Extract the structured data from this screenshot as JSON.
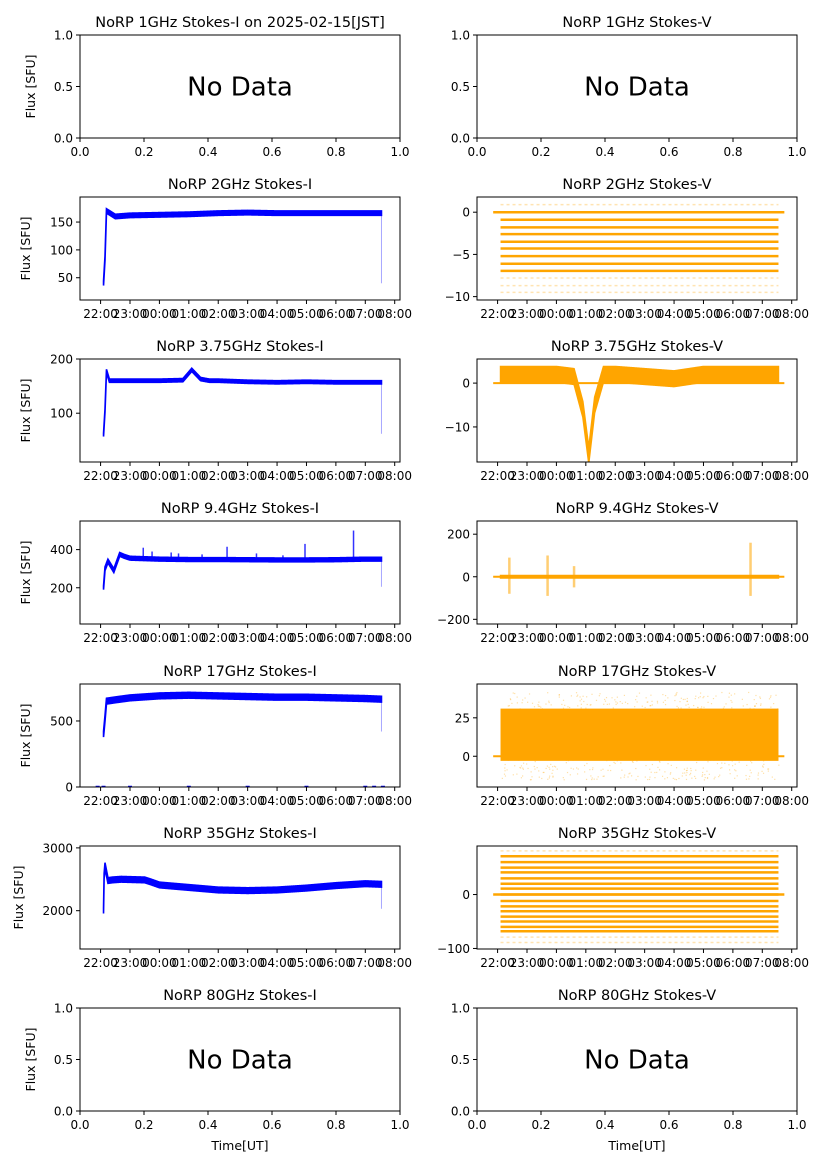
{
  "figure": {
    "date_note": "2025-02-15[JST]",
    "xlabel_bottom": "Time[UT]",
    "ylabel_left": "Flux [SFU]",
    "no_data_text": "No Data"
  },
  "colors": {
    "stokes_i": "#0000ff",
    "stokes_v": "#ffa500",
    "axis": "#000000"
  },
  "chart_data": [
    {
      "id": "1ghz-i",
      "type": "scatter",
      "title": "NoRP 1GHz Stokes-I on 2025-02-15[JST]",
      "ylabel": "Flux [SFU]",
      "xlabel": "",
      "no_data": true,
      "xlim": [
        0,
        1
      ],
      "ylim": [
        0,
        1
      ],
      "xticks": [
        "0.0",
        "0.2",
        "0.4",
        "0.6",
        "0.8",
        "1.0"
      ],
      "xtick_values": [
        0,
        0.2,
        0.4,
        0.6,
        0.8,
        1.0
      ],
      "yticks": [
        "0.0",
        "0.5",
        "1.0"
      ],
      "ytick_values": [
        0,
        0.5,
        1.0
      ]
    },
    {
      "id": "1ghz-v",
      "type": "scatter",
      "title": "NoRP 1GHz Stokes-V",
      "ylabel": "",
      "xlabel": "",
      "no_data": true,
      "xlim": [
        0,
        1
      ],
      "ylim": [
        0,
        1
      ],
      "xticks": [
        "0.0",
        "0.2",
        "0.4",
        "0.6",
        "0.8",
        "1.0"
      ],
      "xtick_values": [
        0,
        0.2,
        0.4,
        0.6,
        0.8,
        1.0
      ],
      "yticks": [
        "0.0",
        "0.5",
        "1.0"
      ],
      "ytick_values": [
        0,
        0.5,
        1.0
      ]
    },
    {
      "id": "2ghz-i",
      "type": "scatter",
      "title": "NoRP 2GHz Stokes-I",
      "ylabel": "Flux [SFU]",
      "xlabel": "",
      "no_data": false,
      "series_kind": "I",
      "xlim_hours": [
        -2.7,
        8.18
      ],
      "ylim": [
        10,
        195
      ],
      "xticks": [
        "22:00",
        "23:00",
        "00:00",
        "01:00",
        "02:00",
        "03:00",
        "04:00",
        "05:00",
        "06:00",
        "07:00",
        "08:00"
      ],
      "xtick_hours": [
        -2,
        -1,
        0,
        1,
        2,
        3,
        4,
        5,
        6,
        7,
        8
      ],
      "yticks": [
        "50",
        "100",
        "150"
      ],
      "ytick_values": [
        50,
        100,
        150
      ],
      "start_hour": -1.9,
      "end_hour": 7.55,
      "band_halfwidth": 4,
      "series": [
        {
          "name": "Stokes-I",
          "x_hours": [
            -1.9,
            -1.85,
            -1.8,
            -1.5,
            -1,
            0,
            1,
            2,
            3,
            4,
            5,
            6,
            7,
            7.55
          ],
          "values": [
            40,
            85,
            170,
            160,
            162,
            163,
            164,
            166,
            167,
            166,
            166,
            166,
            166,
            166
          ]
        }
      ],
      "outliers": [
        {
          "x_hours": 7.55,
          "range": [
            40,
            166
          ]
        }
      ]
    },
    {
      "id": "2ghz-v",
      "type": "scatter",
      "title": "NoRP 2GHz Stokes-V",
      "ylabel": "",
      "xlabel": "",
      "no_data": false,
      "series_kind": "V-levels",
      "xlim_hours": [
        -2.7,
        8.18
      ],
      "ylim": [
        -10.4,
        1.8
      ],
      "xticks": [
        "22:00",
        "23:00",
        "00:00",
        "01:00",
        "02:00",
        "03:00",
        "04:00",
        "05:00",
        "06:00",
        "07:00",
        "08:00"
      ],
      "xtick_hours": [
        -2,
        -1,
        0,
        1,
        2,
        3,
        4,
        5,
        6,
        7,
        8
      ],
      "yticks": [
        "−10",
        "−5",
        "0"
      ],
      "ytick_values": [
        -10,
        -5,
        0
      ],
      "start_hour": -1.9,
      "end_hour": 7.55,
      "zero_line": [
        -2.15,
        7.75
      ],
      "levels_solid": [
        -0.9,
        -1.8,
        -2.6,
        -3.5,
        -4.3,
        -5.2,
        -6.1,
        -6.95
      ],
      "levels_faint": [
        0.9,
        0,
        -7.8,
        -8.7,
        -9.5
      ]
    },
    {
      "id": "3.75ghz-i",
      "type": "scatter",
      "title": "NoRP 3.75GHz Stokes-I",
      "ylabel": "Flux [SFU]",
      "xlabel": "",
      "no_data": false,
      "series_kind": "I",
      "xlim_hours": [
        -2.7,
        8.18
      ],
      "ylim": [
        10,
        200
      ],
      "xticks": [
        "22:00",
        "23:00",
        "00:00",
        "01:00",
        "02:00",
        "03:00",
        "04:00",
        "05:00",
        "06:00",
        "07:00",
        "08:00"
      ],
      "xtick_hours": [
        -2,
        -1,
        0,
        1,
        2,
        3,
        4,
        5,
        6,
        7,
        8
      ],
      "yticks": [
        "100",
        "200"
      ],
      "ytick_values": [
        100,
        200
      ],
      "start_hour": -1.9,
      "end_hour": 7.55,
      "band_halfwidth": 3,
      "series": [
        {
          "name": "Stokes-I",
          "x_hours": [
            -1.9,
            -1.85,
            -1.8,
            -1.7,
            -1.5,
            -1,
            0,
            0.8,
            1.1,
            1.4,
            1.7,
            2,
            3,
            4,
            5,
            6,
            7,
            7.55
          ],
          "values": [
            60,
            105,
            178,
            160,
            160,
            160,
            160,
            161,
            180,
            163,
            160,
            160,
            158,
            157,
            158,
            157,
            157,
            157
          ]
        }
      ],
      "outliers": [
        {
          "x_hours": 7.55,
          "range": [
            62,
            157
          ]
        }
      ]
    },
    {
      "id": "3.75ghz-v",
      "type": "scatter",
      "title": "NoRP 3.75GHz Stokes-V",
      "ylabel": "",
      "xlabel": "",
      "no_data": false,
      "series_kind": "V",
      "xlim_hours": [
        -2.7,
        8.18
      ],
      "ylim": [
        -18,
        5.5
      ],
      "xticks": [
        "22:00",
        "23:00",
        "00:00",
        "01:00",
        "02:00",
        "03:00",
        "04:00",
        "05:00",
        "06:00",
        "07:00",
        "08:00"
      ],
      "xtick_hours": [
        -2,
        -1,
        0,
        1,
        2,
        3,
        4,
        5,
        6,
        7,
        8
      ],
      "yticks": [
        "−10",
        "0"
      ],
      "ytick_values": [
        -10,
        0
      ],
      "start_hour": -1.9,
      "end_hour": 7.55,
      "zero_line": [
        -2.15,
        7.75
      ],
      "band_halfwidth": 1.8,
      "series": [
        {
          "name": "Stokes-V",
          "x_hours": [
            -1.9,
            -1,
            0,
            0.6,
            0.9,
            1.1,
            1.3,
            1.6,
            2,
            3,
            4,
            5,
            6,
            7,
            7.55
          ],
          "values": [
            2,
            2,
            2,
            1.5,
            -6,
            -16.5,
            -5,
            2,
            2,
            1.5,
            1,
            2,
            2,
            2,
            2
          ]
        }
      ]
    },
    {
      "id": "9.4ghz-i",
      "type": "scatter",
      "title": "NoRP 9.4GHz Stokes-I",
      "ylabel": "Flux [SFU]",
      "xlabel": "",
      "no_data": false,
      "series_kind": "I",
      "xlim_hours": [
        -2.7,
        8.18
      ],
      "ylim": [
        10,
        550
      ],
      "xticks": [
        "22:00",
        "23:00",
        "00:00",
        "01:00",
        "02:00",
        "03:00",
        "04:00",
        "05:00",
        "06:00",
        "07:00",
        "08:00"
      ],
      "xtick_hours": [
        -2,
        -1,
        0,
        1,
        2,
        3,
        4,
        5,
        6,
        7,
        8
      ],
      "yticks": [
        "200",
        "400"
      ],
      "ytick_values": [
        200,
        400
      ],
      "start_hour": -1.9,
      "end_hour": 7.55,
      "band_halfwidth": 10,
      "series": [
        {
          "name": "Stokes-I",
          "x_hours": [
            -1.9,
            -1.85,
            -1.75,
            -1.55,
            -1.35,
            -1.2,
            -1,
            0,
            1,
            2,
            3,
            4,
            5,
            6,
            7,
            7.55
          ],
          "values": [
            200,
            300,
            340,
            290,
            375,
            365,
            355,
            350,
            348,
            348,
            347,
            346,
            346,
            347,
            350,
            350
          ]
        }
      ],
      "spikes": [
        {
          "x_hours": -0.55,
          "peak": 410
        },
        {
          "x_hours": -0.25,
          "peak": 390
        },
        {
          "x_hours": 0.4,
          "peak": 385
        },
        {
          "x_hours": 0.65,
          "peak": 380
        },
        {
          "x_hours": 1.45,
          "peak": 375
        },
        {
          "x_hours": 2.3,
          "peak": 415
        },
        {
          "x_hours": 3.3,
          "peak": 380
        },
        {
          "x_hours": 4.2,
          "peak": 370
        },
        {
          "x_hours": 4.95,
          "peak": 430
        },
        {
          "x_hours": 6.6,
          "peak": 500
        }
      ],
      "outliers": [
        {
          "x_hours": 7.55,
          "range": [
            205,
            350
          ]
        }
      ]
    },
    {
      "id": "9.4ghz-v",
      "type": "scatter",
      "title": "NoRP 9.4GHz Stokes-V",
      "ylabel": "",
      "xlabel": "",
      "no_data": false,
      "series_kind": "V",
      "xlim_hours": [
        -2.7,
        8.18
      ],
      "ylim": [
        -222,
        262
      ],
      "xticks": [
        "22:00",
        "23:00",
        "00:00",
        "01:00",
        "02:00",
        "03:00",
        "04:00",
        "05:00",
        "06:00",
        "07:00",
        "08:00"
      ],
      "xtick_hours": [
        -2,
        -1,
        0,
        1,
        2,
        3,
        4,
        5,
        6,
        7,
        8
      ],
      "yticks": [
        "−200",
        "0",
        "200"
      ],
      "ytick_values": [
        -200,
        0,
        200
      ],
      "start_hour": -1.9,
      "end_hour": 7.55,
      "zero_line": [
        -2.15,
        7.75
      ],
      "band_halfwidth": 6,
      "series": [
        {
          "name": "Stokes-V",
          "x_hours": [
            -1.9,
            7.55
          ],
          "values": [
            0,
            0
          ]
        }
      ],
      "spikes": [
        {
          "x_hours": -1.6,
          "range": [
            -80,
            90
          ]
        },
        {
          "x_hours": -0.3,
          "range": [
            -90,
            100
          ]
        },
        {
          "x_hours": 0.6,
          "range": [
            -50,
            50
          ]
        },
        {
          "x_hours": 6.6,
          "range": [
            -90,
            160
          ]
        }
      ]
    },
    {
      "id": "17ghz-i",
      "type": "scatter",
      "title": "NoRP 17GHz Stokes-I",
      "ylabel": "Flux [SFU]",
      "xlabel": "",
      "no_data": false,
      "series_kind": "I",
      "xlim_hours": [
        -2.7,
        8.18
      ],
      "ylim": [
        0,
        780
      ],
      "xticks": [
        "22:00",
        "23:00",
        "00:00",
        "01:00",
        "02:00",
        "03:00",
        "04:00",
        "05:00",
        "06:00",
        "07:00",
        "08:00"
      ],
      "xtick_hours": [
        -2,
        -1,
        0,
        1,
        2,
        3,
        4,
        5,
        6,
        7,
        8
      ],
      "yticks": [
        "0",
        "500"
      ],
      "ytick_values": [
        0,
        500
      ],
      "start_hour": -1.9,
      "end_hour": 7.55,
      "band_halfwidth": 22,
      "series": [
        {
          "name": "Stokes-I",
          "x_hours": [
            -1.9,
            -1.85,
            -1.8,
            -1.5,
            -1,
            0,
            1,
            2,
            3,
            4,
            5,
            6,
            7,
            7.55
          ],
          "values": [
            400,
            520,
            650,
            660,
            675,
            690,
            695,
            690,
            685,
            680,
            680,
            675,
            670,
            665
          ]
        }
      ],
      "zero_points_hours": [
        -2.1,
        -1.9,
        -1.0,
        1.0,
        3.0,
        5.0,
        7.0,
        7.3,
        7.6
      ],
      "outliers": [
        {
          "x_hours": 7.55,
          "range": [
            420,
            665
          ]
        }
      ]
    },
    {
      "id": "17ghz-v",
      "type": "scatter",
      "title": "NoRP 17GHz Stokes-V",
      "ylabel": "",
      "xlabel": "",
      "no_data": false,
      "series_kind": "V-noise",
      "xlim_hours": [
        -2.7,
        8.18
      ],
      "ylim": [
        -20,
        47
      ],
      "xticks": [
        "22:00",
        "23:00",
        "00:00",
        "01:00",
        "02:00",
        "03:00",
        "04:00",
        "05:00",
        "06:00",
        "07:00",
        "08:00"
      ],
      "xtick_hours": [
        -2,
        -1,
        0,
        1,
        2,
        3,
        4,
        5,
        6,
        7,
        8
      ],
      "yticks": [
        "0",
        "25"
      ],
      "ytick_values": [
        0,
        25
      ],
      "start_hour": -1.9,
      "end_hour": 7.55,
      "zero_line": [
        -2.15,
        7.75
      ],
      "band_solid": [
        -3,
        31
      ],
      "band_faint": [
        -15,
        42
      ]
    },
    {
      "id": "35ghz-i",
      "type": "scatter",
      "title": "NoRP 35GHz Stokes-I",
      "ylabel": "Flux [SFU]",
      "xlabel": "",
      "no_data": false,
      "series_kind": "I",
      "xlim_hours": [
        -2.7,
        8.18
      ],
      "ylim": [
        1390,
        3030
      ],
      "xticks": [
        "22:00",
        "23:00",
        "00:00",
        "01:00",
        "02:00",
        "03:00",
        "04:00",
        "05:00",
        "06:00",
        "07:00",
        "08:00"
      ],
      "xtick_hours": [
        -2,
        -1,
        0,
        1,
        2,
        3,
        4,
        5,
        6,
        7,
        8
      ],
      "yticks": [
        "2000",
        "3000"
      ],
      "ytick_values": [
        2000,
        3000
      ],
      "start_hour": -1.9,
      "end_hour": 7.55,
      "band_halfwidth": 45,
      "series": [
        {
          "name": "Stokes-I",
          "x_hours": [
            -1.9,
            -1.88,
            -1.85,
            -1.75,
            -1.6,
            -1.3,
            -0.5,
            -0.3,
            0,
            1,
            2,
            3,
            4,
            5,
            6,
            7,
            7.55
          ],
          "values": [
            2000,
            2550,
            2720,
            2480,
            2490,
            2500,
            2490,
            2460,
            2410,
            2370,
            2330,
            2320,
            2330,
            2360,
            2400,
            2430,
            2420
          ]
        }
      ],
      "outliers": [
        {
          "x_hours": 7.55,
          "range": [
            2030,
            2420
          ]
        }
      ]
    },
    {
      "id": "35ghz-v",
      "type": "scatter",
      "title": "NoRP 35GHz Stokes-V",
      "ylabel": "",
      "xlabel": "",
      "no_data": false,
      "series_kind": "V-levels",
      "xlim_hours": [
        -2.7,
        8.18
      ],
      "ylim": [
        -101,
        90
      ],
      "xticks": [
        "22:00",
        "23:00",
        "00:00",
        "01:00",
        "02:00",
        "03:00",
        "04:00",
        "05:00",
        "06:00",
        "07:00",
        "08:00"
      ],
      "xtick_hours": [
        -2,
        -1,
        0,
        1,
        2,
        3,
        4,
        5,
        6,
        7,
        8
      ],
      "yticks": [
        "−100",
        "0"
      ],
      "ytick_values": [
        -100,
        0
      ],
      "start_hour": -1.9,
      "end_hour": 7.55,
      "zero_line": [
        -2.15,
        7.75
      ],
      "levels_solid": [
        71,
        60,
        50,
        41,
        30,
        20,
        11,
        0,
        -12,
        -22,
        -31,
        -41,
        -50,
        -60,
        -68
      ],
      "levels_faint": [
        81,
        -79,
        -89
      ]
    },
    {
      "id": "80ghz-i",
      "type": "scatter",
      "title": "NoRP 80GHz Stokes-I",
      "ylabel": "Flux [SFU]",
      "xlabel": "Time[UT]",
      "no_data": true,
      "xlim": [
        0,
        1
      ],
      "ylim": [
        0,
        1
      ],
      "xticks": [
        "0.0",
        "0.2",
        "0.4",
        "0.6",
        "0.8",
        "1.0"
      ],
      "xtick_values": [
        0,
        0.2,
        0.4,
        0.6,
        0.8,
        1.0
      ],
      "yticks": [
        "0.0",
        "0.5",
        "1.0"
      ],
      "ytick_values": [
        0,
        0.5,
        1.0
      ]
    },
    {
      "id": "80ghz-v",
      "type": "scatter",
      "title": "NoRP 80GHz Stokes-V",
      "ylabel": "",
      "xlabel": "Time[UT]",
      "no_data": true,
      "xlim": [
        0,
        1
      ],
      "ylim": [
        0,
        1
      ],
      "xticks": [
        "0.0",
        "0.2",
        "0.4",
        "0.6",
        "0.8",
        "1.0"
      ],
      "xtick_values": [
        0,
        0.2,
        0.4,
        0.6,
        0.8,
        1.0
      ],
      "yticks": [
        "0.0",
        "0.5",
        "1.0"
      ],
      "ytick_values": [
        0,
        0.5,
        1.0
      ]
    }
  ]
}
